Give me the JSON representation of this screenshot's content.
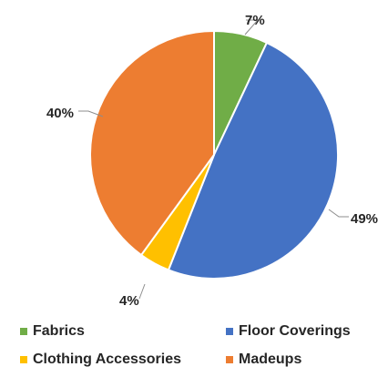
{
  "chart_data": {
    "type": "pie",
    "title": "",
    "slices": [
      {
        "label": "Fabrics",
        "value": 7,
        "data_label": "7%",
        "color": "#70ad47"
      },
      {
        "label": "Floor Coverings",
        "value": 49,
        "data_label": "49%",
        "color": "#4472c4"
      },
      {
        "label": "Clothing Accessories",
        "value": 4,
        "data_label": "4%",
        "color": "#ffc000"
      },
      {
        "label": "Madeups",
        "value": 40,
        "data_label": "40%",
        "color": "#ed7d31"
      }
    ],
    "start_angle": "12 o'clock, clockwise",
    "legend_position": "bottom"
  },
  "legend": {
    "items": [
      {
        "label": "Fabrics",
        "color": "#70ad47"
      },
      {
        "label": "Floor Coverings",
        "color": "#4472c4"
      },
      {
        "label": "Clothing Accessories",
        "color": "#ffc000"
      },
      {
        "label": "Madeups",
        "color": "#ed7d31"
      }
    ]
  }
}
